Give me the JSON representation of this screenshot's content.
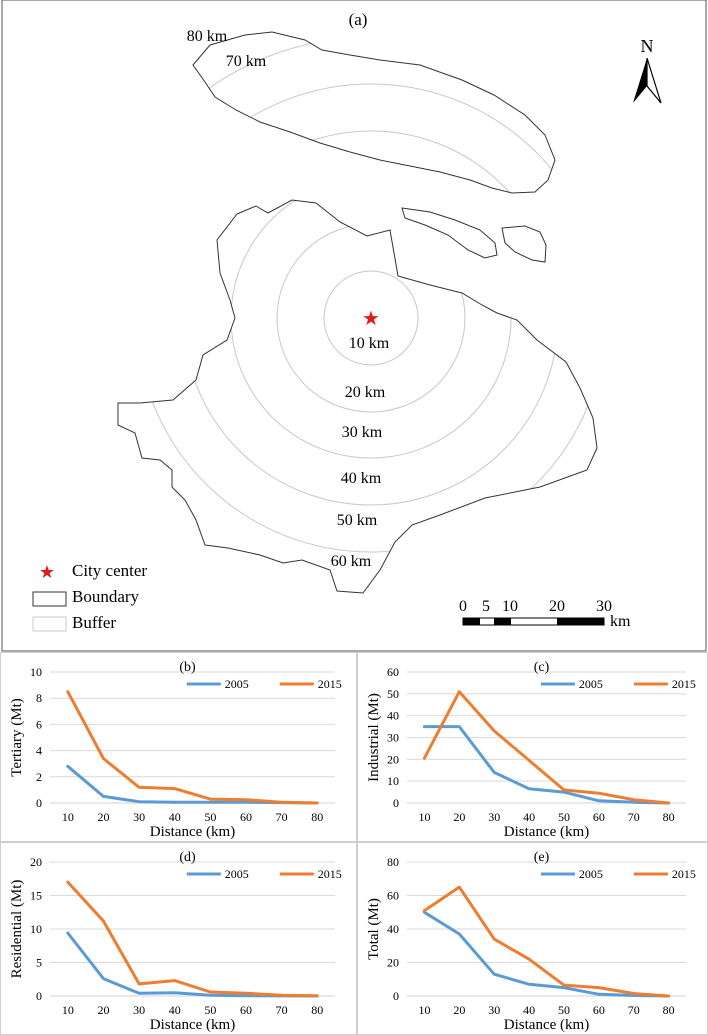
{
  "map": {
    "label": "(a)",
    "north": "N",
    "buffer_labels": [
      "10 km",
      "20 km",
      "30 km",
      "40 km",
      "50 km",
      "60 km",
      "70 km",
      "80 km"
    ],
    "legend": {
      "city_center": "City center",
      "boundary": "Boundary",
      "buffer": "Buffer"
    },
    "scalebar": {
      "ticks": [
        "0",
        "5",
        "10",
        "20",
        "30"
      ],
      "unit": "km"
    },
    "colors": {
      "star": "#e31a1c",
      "boundary": "#333333",
      "buffer": "#c8c8c8"
    }
  },
  "colors": {
    "s2005": "#5b9bd5",
    "s2015": "#ed7d31",
    "grid": "#d9d9d9"
  },
  "chart_data": [
    {
      "id": "b",
      "type": "line",
      "title": "(b)",
      "xlabel": "Distance (km)",
      "ylabel": "Tertiary (Mt)",
      "x": [
        10,
        20,
        30,
        40,
        50,
        60,
        70,
        80
      ],
      "ylim": [
        0,
        10
      ],
      "yticks": [
        0,
        2,
        4,
        6,
        8,
        10
      ],
      "series": [
        {
          "name": "2005",
          "values": [
            2.8,
            0.5,
            0.1,
            0.05,
            0.05,
            0.05,
            0.03,
            0.0
          ]
        },
        {
          "name": "2015",
          "values": [
            8.5,
            3.4,
            1.2,
            1.1,
            0.3,
            0.25,
            0.05,
            0.0
          ]
        }
      ]
    },
    {
      "id": "c",
      "type": "line",
      "title": "(c)",
      "xlabel": "Distance (km)",
      "ylabel": "Industrial (Mt)",
      "x": [
        10,
        20,
        30,
        40,
        50,
        60,
        70,
        80
      ],
      "ylim": [
        0,
        60
      ],
      "yticks": [
        0,
        10,
        20,
        30,
        40,
        50,
        60
      ],
      "series": [
        {
          "name": "2005",
          "values": [
            35,
            35,
            14,
            6.5,
            5,
            1,
            0.3,
            0
          ]
        },
        {
          "name": "2015",
          "values": [
            20.5,
            51,
            33,
            19.5,
            6,
            4.5,
            1.5,
            0
          ]
        }
      ]
    },
    {
      "id": "d",
      "type": "line",
      "title": "(d)",
      "xlabel": "Distance (km)",
      "ylabel": "Residential (Mt)",
      "x": [
        10,
        20,
        30,
        40,
        50,
        60,
        70,
        80
      ],
      "ylim": [
        0,
        20
      ],
      "yticks": [
        0,
        5,
        10,
        15,
        20
      ],
      "series": [
        {
          "name": "2005",
          "values": [
            9.4,
            2.6,
            0.4,
            0.5,
            0.1,
            0.05,
            0.02,
            0.0
          ]
        },
        {
          "name": "2015",
          "values": [
            17,
            11.2,
            1.8,
            2.3,
            0.6,
            0.4,
            0.1,
            0.05
          ]
        }
      ]
    },
    {
      "id": "e",
      "type": "line",
      "title": "(e)",
      "xlabel": "Distance (km)",
      "ylabel": "Total (Mt)",
      "x": [
        10,
        20,
        30,
        40,
        50,
        60,
        70,
        80
      ],
      "ylim": [
        0,
        80
      ],
      "yticks": [
        0,
        20,
        40,
        60,
        80
      ],
      "series": [
        {
          "name": "2005",
          "values": [
            50,
            37,
            13,
            7,
            5,
            1,
            0.3,
            0
          ]
        },
        {
          "name": "2015",
          "values": [
            51,
            65,
            34,
            22,
            6.5,
            5,
            1.5,
            0
          ]
        }
      ]
    }
  ]
}
